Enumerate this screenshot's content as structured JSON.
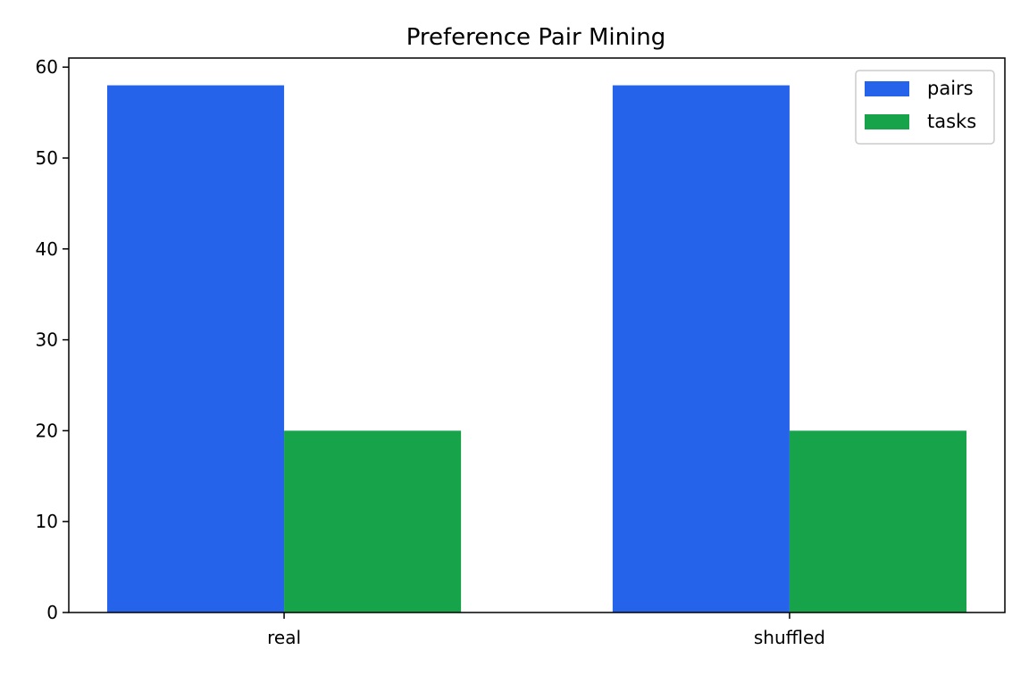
{
  "chart_data": {
    "type": "bar",
    "title": "Preference Pair Mining",
    "xlabel": "",
    "ylabel": "",
    "categories": [
      "real",
      "shuffled"
    ],
    "series": [
      {
        "name": "pairs",
        "values": [
          58,
          58
        ],
        "color": "#2563eb"
      },
      {
        "name": "tasks",
        "values": [
          20,
          20
        ],
        "color": "#16a34a"
      }
    ],
    "ylim": [
      0,
      61
    ],
    "yticks": [
      0,
      10,
      20,
      30,
      40,
      50,
      60
    ],
    "grid": false,
    "legend_position": "top-right"
  }
}
